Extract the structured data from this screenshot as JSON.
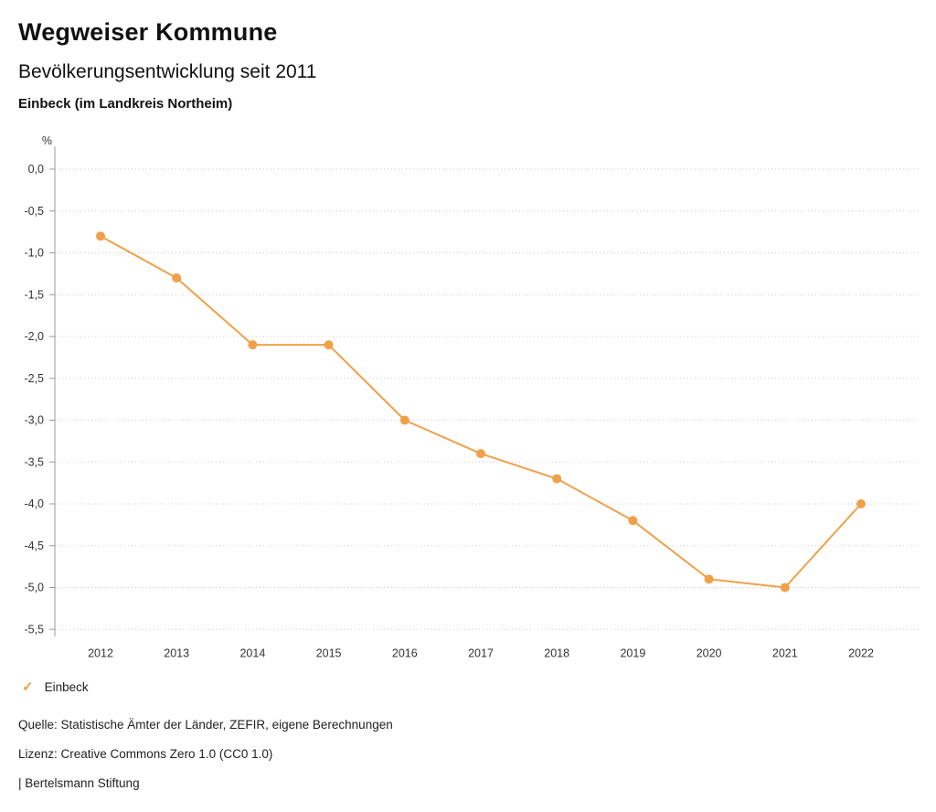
{
  "header": {
    "title": "Wegweiser Kommune",
    "subtitle": "Bevölkerungsentwicklung seit 2011",
    "region": "Einbeck (im Landkreis Northeim)"
  },
  "chart_data": {
    "type": "line",
    "title": "Bevölkerungsentwicklung seit 2011 — Einbeck (im Landkreis Northeim)",
    "x": [
      2012,
      2013,
      2014,
      2015,
      2016,
      2017,
      2018,
      2019,
      2020,
      2021,
      2022
    ],
    "series": [
      {
        "name": "Einbeck",
        "values": [
          -0.8,
          -1.3,
          -2.1,
          -2.1,
          -3.0,
          -3.4,
          -3.7,
          -4.2,
          -4.9,
          -5.0,
          -4.0
        ]
      }
    ],
    "xlabel": "",
    "ylabel": "%",
    "ylim": [
      -5.5,
      0.0
    ],
    "ytick_step": 0.5,
    "ytick_labels": [
      "0,0",
      "-0,5",
      "-1,0",
      "-1,5",
      "-2,0",
      "-2,5",
      "-3,0",
      "-3,5",
      "-4,0",
      "-4,5",
      "-5,0",
      "-5,5"
    ],
    "grid": "horizontal-dotted",
    "legend_position": "bottom-left",
    "line_color": "#f0a04a",
    "grid_color": "#c9c9c9",
    "axis_color": "#9a9a9a",
    "tick_text_color": "#333333"
  },
  "legend": {
    "items": [
      {
        "label": "Einbeck",
        "color": "#f0a04a",
        "marker": "check-icon"
      }
    ]
  },
  "footer": {
    "source": "Quelle: Statistische Ämter der Länder, ZEFIR, eigene Berechnungen",
    "license": "Lizenz: Creative Commons Zero 1.0 (CC0 1.0)",
    "publisher": "| Bertelsmann Stiftung"
  }
}
